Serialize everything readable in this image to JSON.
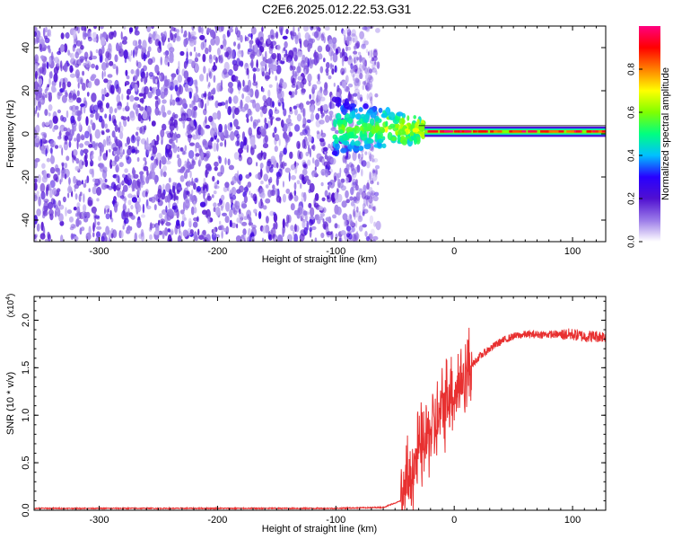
{
  "title": "C2E6.2025.012.22.53.G31",
  "chart_data": [
    {
      "type": "heatmap",
      "xlabel": "Height of straight line (km)",
      "ylabel": "Frequency (Hz)",
      "xlim": [
        -355,
        128
      ],
      "ylim": [
        -50,
        50
      ],
      "x_ticks": [
        -300,
        -200,
        -100,
        0,
        100
      ],
      "y_ticks": [
        -40,
        -20,
        0,
        20,
        40
      ],
      "noise_region_x": [
        -355,
        -72
      ],
      "transition_region_x": [
        -72,
        -25
      ],
      "signal_line": {
        "x_start": -25,
        "x_end": 128,
        "frequency": 1
      },
      "colorbar": {
        "label": "Normalized spectral amplitude",
        "range": [
          0,
          1
        ],
        "ticks": [
          "0.0",
          "0.2",
          "0.4",
          "0.6",
          "0.8"
        ],
        "colors": [
          "#ffffff",
          "#9a7ae8",
          "#5010d0",
          "#2800ff",
          "#00c0ff",
          "#00ff80",
          "#80ff00",
          "#ffff00",
          "#ff8000",
          "#ff0000",
          "#ff0080"
        ]
      }
    },
    {
      "type": "line",
      "xlabel": "Height of straight line (km)",
      "ylabel": "SNR (10 * v/v)",
      "y_multiplier": "(x10",
      "y_multiplier_exp": "4",
      "unit_note": ")",
      "xlim": [
        -355,
        128
      ],
      "ylim": [
        0,
        2.25
      ],
      "x_ticks": [
        -300,
        -200,
        -100,
        0,
        100
      ],
      "y_ticks": [
        "0.0",
        "0.5",
        "1.0",
        "1.5",
        "2.0"
      ],
      "color": "#e83030",
      "x": [
        -355,
        -300,
        -200,
        -100,
        -60,
        -45,
        -40,
        -35,
        -30,
        -25,
        -20,
        -15,
        -10,
        -5,
        0,
        10,
        20,
        30,
        40,
        50,
        60,
        80,
        100,
        110,
        120,
        128
      ],
      "y": [
        0.02,
        0.02,
        0.02,
        0.02,
        0.03,
        0.1,
        0.25,
        0.45,
        0.6,
        0.7,
        0.85,
        0.9,
        1.05,
        1.25,
        1.25,
        1.45,
        1.6,
        1.7,
        1.78,
        1.83,
        1.85,
        1.85,
        1.85,
        1.83,
        1.83,
        1.83
      ]
    }
  ]
}
